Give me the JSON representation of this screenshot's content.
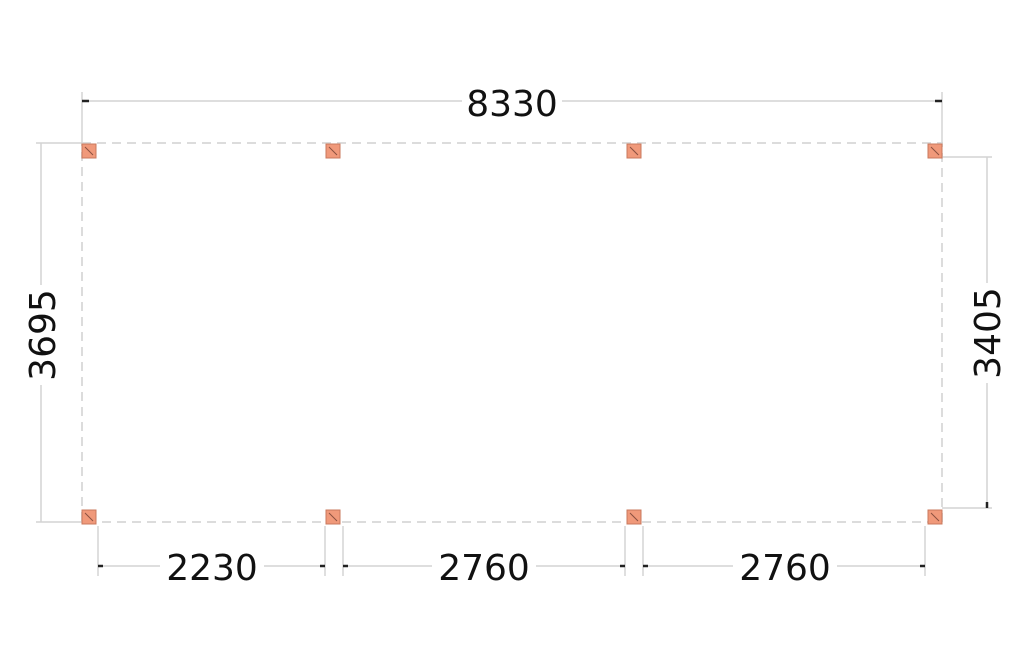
{
  "drawing": {
    "overall_width": "8330",
    "left_depth": "3695",
    "right_depth": "3405",
    "bays": [
      "2230",
      "2760",
      "2760"
    ],
    "post_color": "#f0997a",
    "outline_style": "dashed"
  }
}
